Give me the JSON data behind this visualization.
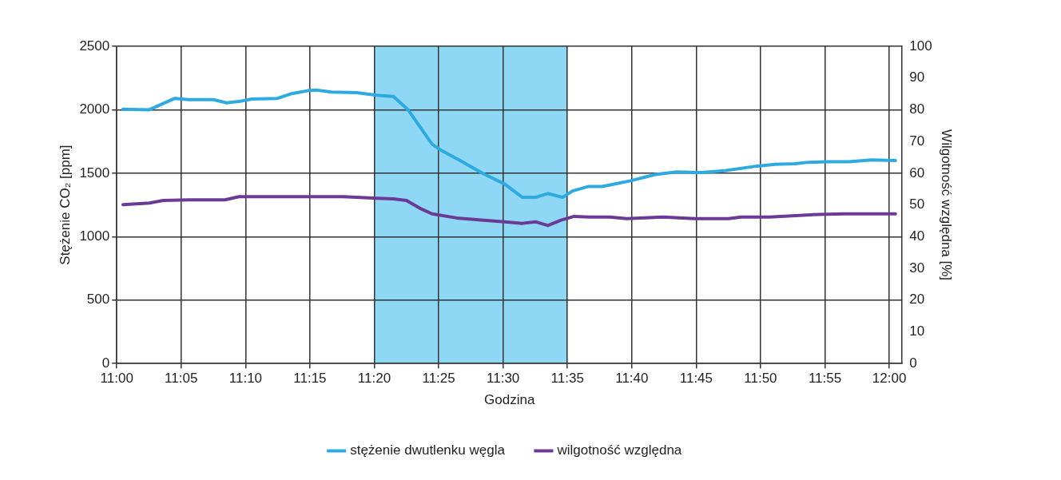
{
  "chart_data": {
    "type": "line",
    "xlabel": "Godzina",
    "ylabel": "Stężenie CO₂ [ppm]",
    "y2label": "Wilgotność względna [%]",
    "xlim": [
      11,
      12.0167
    ],
    "xticks": [
      {
        "value": 11,
        "label": "11:00"
      },
      {
        "value": 11.0833,
        "label": "11:05"
      },
      {
        "value": 11.1667,
        "label": "11:10"
      },
      {
        "value": 11.25,
        "label": "11:15"
      },
      {
        "value": 11.3333,
        "label": "11:20"
      },
      {
        "value": 11.4167,
        "label": "11:25"
      },
      {
        "value": 11.5,
        "label": "11:30"
      },
      {
        "value": 11.5833,
        "label": "11:35"
      },
      {
        "value": 11.6667,
        "label": "11:40"
      },
      {
        "value": 11.75,
        "label": "11:45"
      },
      {
        "value": 11.8333,
        "label": "11:50"
      },
      {
        "value": 11.9167,
        "label": "11:55"
      },
      {
        "value": 12,
        "label": "12:00"
      }
    ],
    "ylim": [
      0,
      2500
    ],
    "yticks": [
      0,
      500,
      1000,
      1500,
      2000,
      2500
    ],
    "y2lim": [
      0,
      100
    ],
    "y2ticks": [
      0,
      10,
      20,
      30,
      40,
      50,
      60,
      70,
      80,
      90,
      100
    ],
    "grid": true,
    "legend": "bottom",
    "marker": "none",
    "line_style": "solid",
    "bands": [
      {
        "axis": "x",
        "from": 11.3333,
        "to": 11.5833,
        "color": "#8fd8f5"
      }
    ],
    "series": [
      {
        "name": "stężenie dwutlenku węgla",
        "color": "#2eaae1",
        "x": [
          11.008,
          11.042,
          11.075,
          11.093,
          11.125,
          11.142,
          11.158,
          11.175,
          11.208,
          11.225,
          11.247,
          11.258,
          11.278,
          11.31,
          11.337,
          11.358,
          11.377,
          11.408,
          11.42,
          11.443,
          11.475,
          11.502,
          11.525,
          11.542,
          11.558,
          11.577,
          11.59,
          11.61,
          11.628,
          11.665,
          11.697,
          11.725,
          11.757,
          11.787,
          11.827,
          11.852,
          11.878,
          11.893,
          11.918,
          11.948,
          11.977,
          12.008
        ],
        "values": [
          2005,
          2000,
          2090,
          2080,
          2080,
          2055,
          2065,
          2085,
          2090,
          2125,
          2150,
          2155,
          2140,
          2135,
          2115,
          2105,
          2000,
          1730,
          1680,
          1605,
          1495,
          1415,
          1310,
          1310,
          1340,
          1310,
          1360,
          1395,
          1395,
          1440,
          1490,
          1510,
          1505,
          1520,
          1555,
          1570,
          1575,
          1585,
          1590,
          1590,
          1605,
          1600
        ]
      },
      {
        "name": "wilgotność względna",
        "color": "#6b3a96",
        "axis": "y2",
        "x": [
          11.008,
          11.042,
          11.06,
          11.093,
          11.14,
          11.158,
          11.175,
          11.247,
          11.293,
          11.337,
          11.358,
          11.375,
          11.392,
          11.408,
          11.44,
          11.475,
          11.502,
          11.525,
          11.542,
          11.558,
          11.575,
          11.592,
          11.612,
          11.638,
          11.66,
          11.707,
          11.748,
          11.792,
          11.808,
          11.845,
          11.898,
          11.94,
          11.972,
          12.008
        ],
        "values": [
          50.1,
          50.6,
          51.4,
          51.6,
          51.6,
          52.6,
          52.6,
          52.6,
          52.6,
          52.1,
          51.9,
          51.4,
          49,
          47.2,
          45.9,
          45.2,
          44.7,
          44.2,
          44.7,
          43.5,
          45.2,
          46.4,
          46.2,
          46.2,
          45.7,
          46.2,
          45.7,
          45.7,
          46.2,
          46.2,
          46.9,
          47.2,
          47.2,
          47.2
        ]
      }
    ]
  }
}
